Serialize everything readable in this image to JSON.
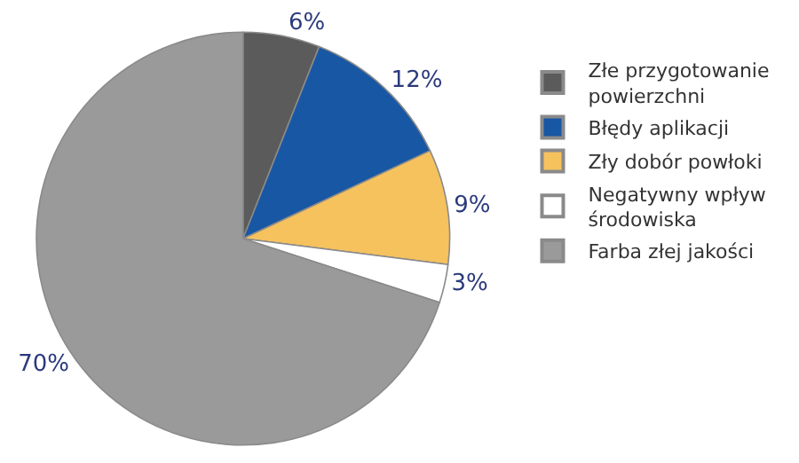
{
  "chart_data": {
    "type": "pie",
    "categories": [
      "Złe przygotowanie powierzchni",
      "Błędy aplikacji",
      "Zły dobór powłoki",
      "Negatywny wpływ środowiska",
      "Farba złej jakości"
    ],
    "values": [
      6,
      12,
      9,
      3,
      70
    ],
    "colors": [
      "#5b5b5b",
      "#1857a4",
      "#f6c25e",
      "#ffffff",
      "#9a9a9a"
    ],
    "value_labels": [
      "6%",
      "12%",
      "9%",
      "3%",
      "70%"
    ],
    "legend": "right"
  }
}
